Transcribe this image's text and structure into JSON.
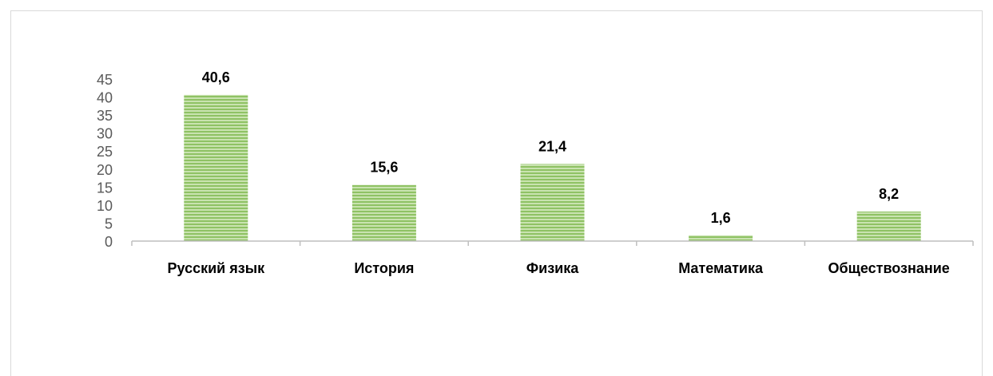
{
  "chart_data": {
    "type": "bar",
    "categories": [
      "Русский язык",
      "История",
      "Физика",
      "Математика",
      "Обществознание"
    ],
    "values": [
      40.6,
      15.6,
      21.4,
      1.6,
      8.2
    ],
    "value_labels": [
      "40,6",
      "15,6",
      "21,4",
      "1,6",
      "8,2"
    ],
    "yticks": [
      "0",
      "5",
      "10",
      "15",
      "20",
      "25",
      "30",
      "35",
      "40",
      "45"
    ],
    "ylim": [
      0,
      45
    ],
    "title": "",
    "xlabel": "",
    "ylabel": "",
    "grid": false,
    "colors": {
      "bar": "#8fc264",
      "bar_stripe": "#c9e3b0",
      "axis": "#bfbfbf"
    }
  }
}
